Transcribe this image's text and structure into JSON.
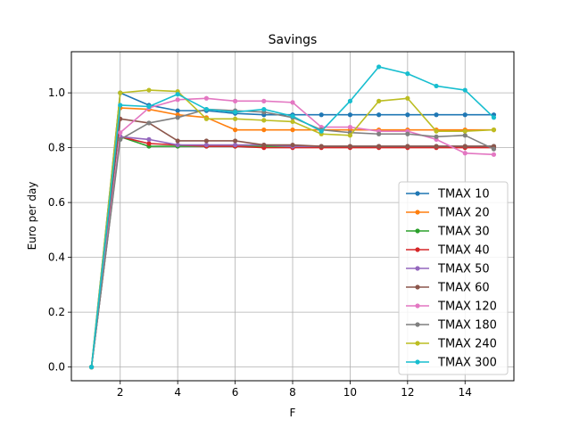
{
  "chart_data": {
    "type": "line",
    "title": "Savings",
    "xlabel": "F",
    "ylabel": "Euro per day",
    "xlim": [
      0.3,
      15.7
    ],
    "ylim": [
      -0.05,
      1.15
    ],
    "xticks": [
      2,
      4,
      6,
      8,
      10,
      12,
      14
    ],
    "yticks": [
      0.0,
      0.2,
      0.4,
      0.6,
      0.8,
      1.0
    ],
    "grid": true,
    "legend_position": "lower-right",
    "x": [
      1,
      2,
      3,
      4,
      5,
      6,
      7,
      8,
      9,
      10,
      11,
      12,
      13,
      14,
      15
    ],
    "series": [
      {
        "name": "TMAX 10",
        "color": "#1f77b4",
        "values": [
          0.0,
          1.0,
          0.955,
          0.935,
          0.935,
          0.925,
          0.92,
          0.92,
          0.92,
          0.92,
          0.92,
          0.92,
          0.92,
          0.92,
          0.92
        ]
      },
      {
        "name": "TMAX 20",
        "color": "#ff7f0e",
        "values": [
          0.0,
          0.945,
          0.94,
          0.92,
          0.91,
          0.865,
          0.865,
          0.865,
          0.865,
          0.865,
          0.865,
          0.865,
          0.865,
          0.865,
          0.865
        ]
      },
      {
        "name": "TMAX 30",
        "color": "#2ca02c",
        "values": [
          0.0,
          0.84,
          0.805,
          0.805,
          0.805,
          0.805,
          0.805,
          0.805,
          0.805,
          0.805,
          0.805,
          0.805,
          0.805,
          0.805,
          0.805
        ]
      },
      {
        "name": "TMAX 40",
        "color": "#d62728",
        "values": [
          0.0,
          0.84,
          0.815,
          0.81,
          0.805,
          0.805,
          0.8,
          0.8,
          0.8,
          0.8,
          0.8,
          0.8,
          0.8,
          0.8,
          0.8
        ]
      },
      {
        "name": "TMAX 50",
        "color": "#9467bd",
        "values": [
          0.0,
          0.84,
          0.83,
          0.81,
          0.81,
          0.81,
          0.81,
          0.805,
          0.805,
          0.805,
          0.805,
          0.805,
          0.805,
          0.805,
          0.805
        ]
      },
      {
        "name": "TMAX 60",
        "color": "#8c564b",
        "values": [
          0.0,
          0.905,
          0.89,
          0.825,
          0.825,
          0.825,
          0.81,
          0.81,
          0.805,
          0.805,
          0.805,
          0.805,
          0.805,
          0.805,
          0.805
        ]
      },
      {
        "name": "TMAX 120",
        "color": "#e377c2",
        "values": [
          0.0,
          0.855,
          0.945,
          0.975,
          0.98,
          0.97,
          0.97,
          0.965,
          0.875,
          0.875,
          0.86,
          0.86,
          0.83,
          0.78,
          0.775
        ]
      },
      {
        "name": "TMAX 180",
        "color": "#7f7f7f",
        "values": [
          0.0,
          0.83,
          0.89,
          0.91,
          0.94,
          0.935,
          0.93,
          0.91,
          0.865,
          0.855,
          0.85,
          0.85,
          0.84,
          0.845,
          0.795
        ]
      },
      {
        "name": "TMAX 240",
        "color": "#bcbd22",
        "values": [
          0.0,
          1.0,
          1.01,
          1.005,
          0.905,
          0.905,
          0.9,
          0.895,
          0.85,
          0.845,
          0.97,
          0.98,
          0.86,
          0.86,
          0.865
        ]
      },
      {
        "name": "TMAX 300",
        "color": "#17becf",
        "values": [
          0.0,
          0.955,
          0.95,
          0.995,
          0.94,
          0.93,
          0.94,
          0.915,
          0.86,
          0.97,
          1.095,
          1.07,
          1.025,
          1.01,
          0.91
        ]
      }
    ]
  }
}
